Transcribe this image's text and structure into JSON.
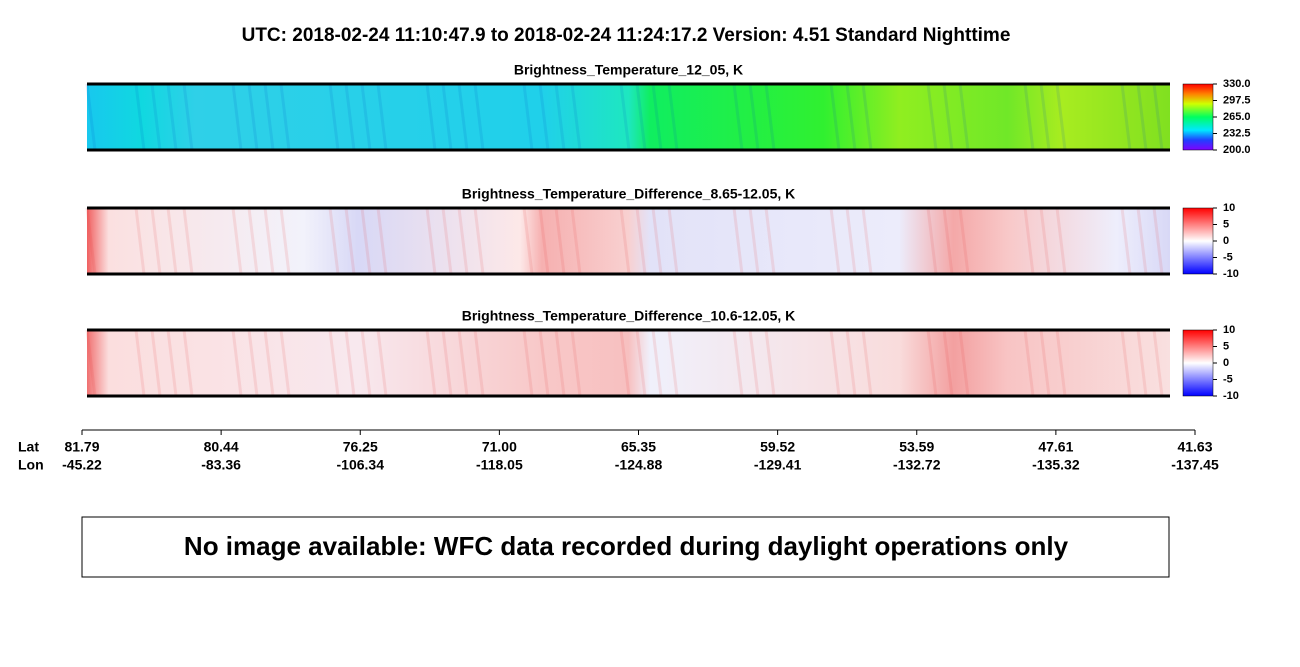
{
  "header": {
    "title": "UTC:  2018-02-24   11:10:47.9  to  2018-02-24   11:24:17.2    Version: 4.51  Standard Nighttime"
  },
  "chart_data": [
    {
      "type": "heatmap",
      "title": "Brightness_Temperature_12_05, K",
      "colormap": "rainbow",
      "zlim": [
        200,
        330
      ],
      "zticks": [
        {
          "value": 330,
          "label": "330.0"
        },
        297.5,
        {
          "value": 265,
          "label": "265.0"
        },
        232.5,
        {
          "value": 200,
          "label": "200.0"
        }
      ]
    },
    {
      "type": "heatmap",
      "title": "Brightness_Temperature_Difference_8.65-12.05, K",
      "colormap": "blue-white-red",
      "zlim": [
        -10,
        10
      ],
      "zticks": [
        10,
        5,
        0,
        -5,
        -10
      ]
    },
    {
      "type": "heatmap",
      "title": "Brightness_Temperature_Difference_10.6-12.05, K",
      "colormap": "blue-white-red",
      "zlim": [
        -10,
        10
      ],
      "zticks": [
        10,
        5,
        0,
        -5,
        -10
      ]
    }
  ],
  "x_axis": {
    "lat_label": "Lat",
    "lon_label": "Lon",
    "ticks": [
      {
        "lat": "81.79",
        "lon": "-45.22"
      },
      {
        "lat": "80.44",
        "lon": "-83.36"
      },
      {
        "lat": "76.25",
        "lon": "-106.34"
      },
      {
        "lat": "71.00",
        "lon": "-118.05"
      },
      {
        "lat": "65.35",
        "lon": "-124.88"
      },
      {
        "lat": "59.52",
        "lon": "-129.41"
      },
      {
        "lat": "53.59",
        "lon": "-132.72"
      },
      {
        "lat": "47.61",
        "lon": "-135.32"
      },
      {
        "lat": "41.63",
        "lon": "-137.45"
      }
    ]
  },
  "notice": "No image available: WFC data recorded during daylight operations only"
}
